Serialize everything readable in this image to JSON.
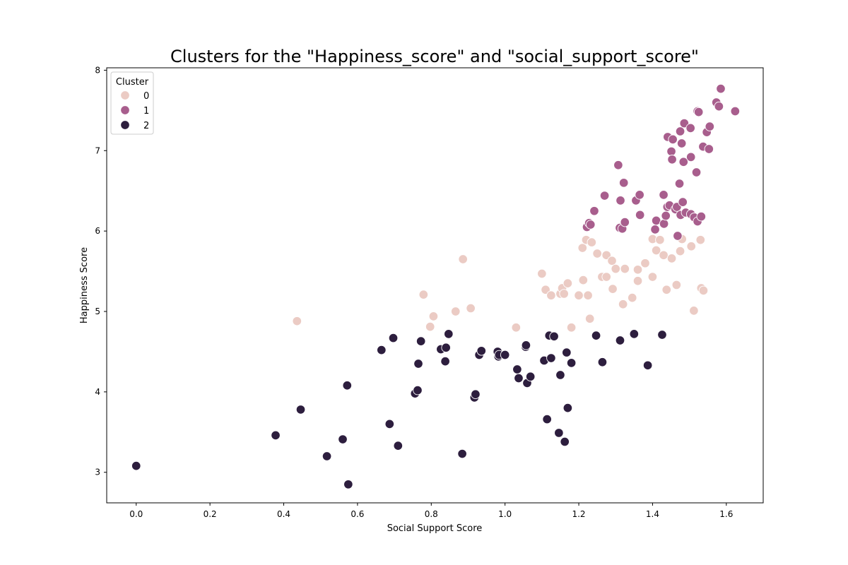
{
  "chart_data": {
    "type": "scatter",
    "title": "Clusters for the \"Happiness_score\" and \"social_support_score\"",
    "xlabel": "Social Support Score",
    "ylabel": "Happiness Score",
    "xlim": [
      -0.08,
      1.7
    ],
    "ylim": [
      2.62,
      8.03
    ],
    "xticks": [
      0.0,
      0.2,
      0.4,
      0.6,
      0.8,
      1.0,
      1.2,
      1.4,
      1.6
    ],
    "yticks": [
      3,
      4,
      5,
      6,
      7,
      8
    ],
    "xtick_labels": [
      "0.0",
      "0.2",
      "0.4",
      "0.6",
      "0.8",
      "1.0",
      "1.2",
      "1.4",
      "1.6"
    ],
    "ytick_labels": [
      "3",
      "4",
      "5",
      "6",
      "7",
      "8"
    ],
    "grid": false,
    "legend": {
      "title": "Cluster",
      "placement": "top-left"
    },
    "series": [
      {
        "name": "0",
        "color": "#ebcbc4",
        "points": [
          [
            0.436,
            4.88
          ],
          [
            0.779,
            5.21
          ],
          [
            0.797,
            4.81
          ],
          [
            0.806,
            4.94
          ],
          [
            0.866,
            5.0
          ],
          [
            0.886,
            5.65
          ],
          [
            0.907,
            5.04
          ],
          [
            1.03,
            4.8
          ],
          [
            1.1,
            5.47
          ],
          [
            1.11,
            5.27
          ],
          [
            1.125,
            5.2
          ],
          [
            1.15,
            5.22
          ],
          [
            1.155,
            5.29
          ],
          [
            1.16,
            5.22
          ],
          [
            1.17,
            5.35
          ],
          [
            1.18,
            4.8
          ],
          [
            1.2,
            5.2
          ],
          [
            1.21,
            5.79
          ],
          [
            1.212,
            5.39
          ],
          [
            1.22,
            5.89
          ],
          [
            1.225,
            5.2
          ],
          [
            1.23,
            4.91
          ],
          [
            1.235,
            5.86
          ],
          [
            1.25,
            5.72
          ],
          [
            1.263,
            5.43
          ],
          [
            1.275,
            5.43
          ],
          [
            1.275,
            5.7
          ],
          [
            1.29,
            5.63
          ],
          [
            1.292,
            5.28
          ],
          [
            1.3,
            5.53
          ],
          [
            1.32,
            5.09
          ],
          [
            1.325,
            5.53
          ],
          [
            1.345,
            5.17
          ],
          [
            1.36,
            5.52
          ],
          [
            1.36,
            5.38
          ],
          [
            1.38,
            5.6
          ],
          [
            1.4,
            5.9
          ],
          [
            1.4,
            5.43
          ],
          [
            1.41,
            5.76
          ],
          [
            1.42,
            5.89
          ],
          [
            1.43,
            5.7
          ],
          [
            1.438,
            5.27
          ],
          [
            1.452,
            5.66
          ],
          [
            1.465,
            5.33
          ],
          [
            1.475,
            5.75
          ],
          [
            1.48,
            5.9
          ],
          [
            1.505,
            5.81
          ],
          [
            1.512,
            5.01
          ],
          [
            1.53,
            5.89
          ],
          [
            1.532,
            5.29
          ],
          [
            1.538,
            5.26
          ]
        ]
      },
      {
        "name": "1",
        "color": "#a85e8d",
        "points": [
          [
            1.222,
            6.05
          ],
          [
            1.228,
            6.1
          ],
          [
            1.232,
            6.08
          ],
          [
            1.242,
            6.25
          ],
          [
            1.27,
            6.44
          ],
          [
            1.307,
            6.82
          ],
          [
            1.311,
            6.04
          ],
          [
            1.313,
            6.38
          ],
          [
            1.318,
            6.03
          ],
          [
            1.322,
            6.6
          ],
          [
            1.325,
            6.11
          ],
          [
            1.355,
            6.38
          ],
          [
            1.365,
            6.45
          ],
          [
            1.366,
            6.2
          ],
          [
            1.407,
            6.02
          ],
          [
            1.41,
            6.13
          ],
          [
            1.43,
            6.45
          ],
          [
            1.431,
            6.09
          ],
          [
            1.436,
            6.19
          ],
          [
            1.44,
            6.3
          ],
          [
            1.441,
            7.17
          ],
          [
            1.446,
            6.32
          ],
          [
            1.451,
            6.99
          ],
          [
            1.453,
            6.89
          ],
          [
            1.455,
            7.14
          ],
          [
            1.462,
            6.27
          ],
          [
            1.466,
            6.3
          ],
          [
            1.468,
            5.94
          ],
          [
            1.473,
            6.59
          ],
          [
            1.475,
            7.24
          ],
          [
            1.476,
            6.2
          ],
          [
            1.479,
            7.09
          ],
          [
            1.482,
            6.36
          ],
          [
            1.484,
            6.86
          ],
          [
            1.486,
            7.34
          ],
          [
            1.49,
            6.23
          ],
          [
            1.503,
            7.28
          ],
          [
            1.504,
            6.21
          ],
          [
            1.504,
            6.92
          ],
          [
            1.513,
            6.17
          ],
          [
            1.519,
            6.73
          ],
          [
            1.522,
            6.12
          ],
          [
            1.522,
            7.49
          ],
          [
            1.525,
            7.48
          ],
          [
            1.532,
            6.18
          ],
          [
            1.537,
            7.05
          ],
          [
            1.547,
            7.23
          ],
          [
            1.553,
            7.02
          ],
          [
            1.555,
            7.3
          ],
          [
            1.573,
            7.6
          ],
          [
            1.58,
            7.55
          ],
          [
            1.585,
            7.77
          ],
          [
            1.624,
            7.49
          ]
        ]
      },
      {
        "name": "2",
        "color": "#2d1e3e",
        "points": [
          [
            0.0,
            3.08
          ],
          [
            0.378,
            3.46
          ],
          [
            0.446,
            3.78
          ],
          [
            0.517,
            3.2
          ],
          [
            0.56,
            3.41
          ],
          [
            0.572,
            4.08
          ],
          [
            0.575,
            2.85
          ],
          [
            0.665,
            4.52
          ],
          [
            0.687,
            3.6
          ],
          [
            0.697,
            4.67
          ],
          [
            0.71,
            3.33
          ],
          [
            0.756,
            3.98
          ],
          [
            0.763,
            4.02
          ],
          [
            0.765,
            4.35
          ],
          [
            0.772,
            4.63
          ],
          [
            0.826,
            4.53
          ],
          [
            0.838,
            4.38
          ],
          [
            0.84,
            4.55
          ],
          [
            0.847,
            4.72
          ],
          [
            0.884,
            3.23
          ],
          [
            0.917,
            3.93
          ],
          [
            0.92,
            3.97
          ],
          [
            0.93,
            4.46
          ],
          [
            0.936,
            4.51
          ],
          [
            0.98,
            4.5
          ],
          [
            0.982,
            4.44
          ],
          [
            0.984,
            4.46
          ],
          [
            1.0,
            4.46
          ],
          [
            1.033,
            4.28
          ],
          [
            1.037,
            4.17
          ],
          [
            1.056,
            4.56
          ],
          [
            1.057,
            4.58
          ],
          [
            1.06,
            4.11
          ],
          [
            1.069,
            4.19
          ],
          [
            1.106,
            4.39
          ],
          [
            1.114,
            3.66
          ],
          [
            1.12,
            4.7
          ],
          [
            1.125,
            4.42
          ],
          [
            1.133,
            4.69
          ],
          [
            1.146,
            3.49
          ],
          [
            1.15,
            4.21
          ],
          [
            1.162,
            3.38
          ],
          [
            1.167,
            4.49
          ],
          [
            1.17,
            3.8
          ],
          [
            1.18,
            4.36
          ],
          [
            1.247,
            4.7
          ],
          [
            1.264,
            4.37
          ],
          [
            1.312,
            4.64
          ],
          [
            1.35,
            4.72
          ],
          [
            1.387,
            4.33
          ],
          [
            1.426,
            4.71
          ]
        ]
      }
    ]
  }
}
